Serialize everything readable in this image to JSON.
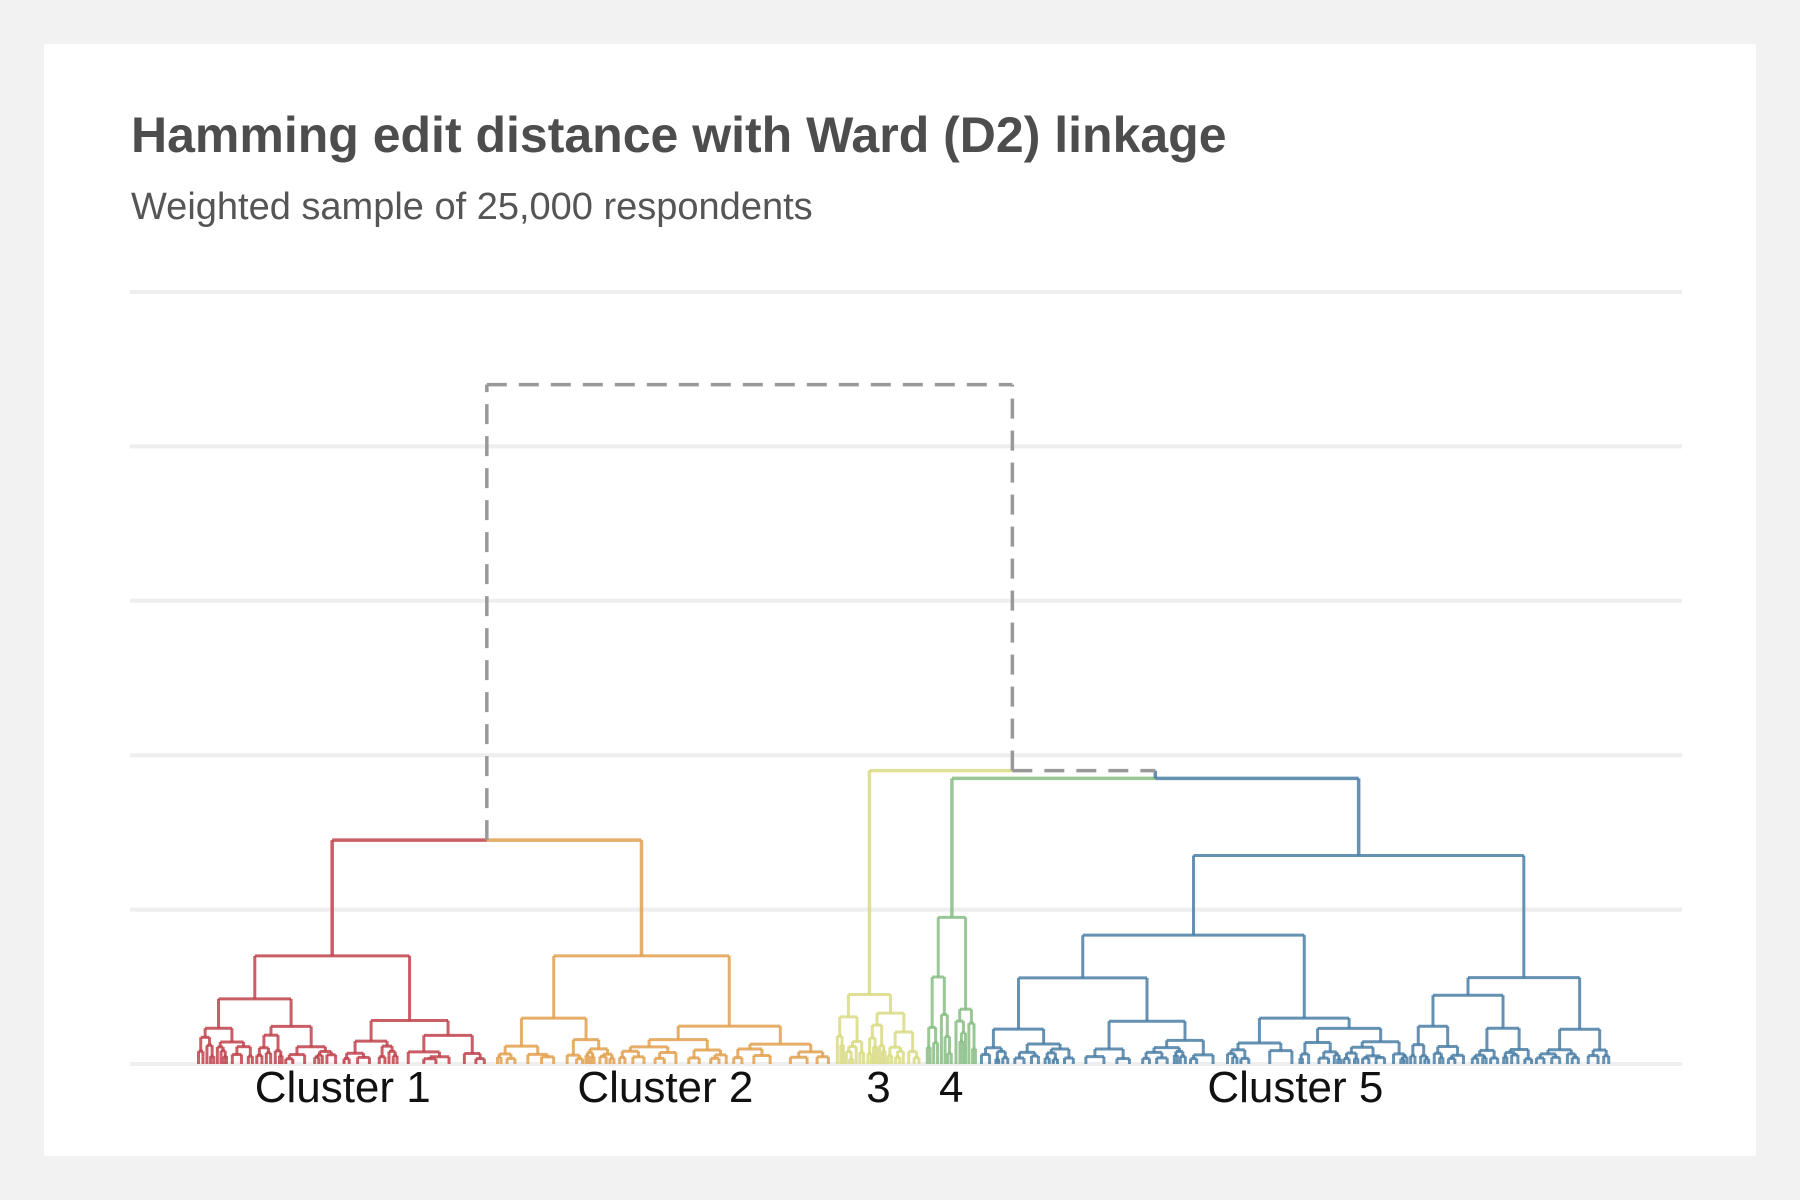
{
  "title": "Hamming edit distance with Ward (D2) linkage",
  "subtitle": "Weighted sample of 25,000 respondents",
  "chart_data": {
    "type": "dendrogram",
    "grid": true,
    "linkage": "Ward (D2)",
    "distance": "Hamming edit distance",
    "top_merge_style": "dashed",
    "top_merge_color": "#999999",
    "clusters": [
      {
        "label": "Cluster 1",
        "color": "#c0424b",
        "relative_size": 0.19
      },
      {
        "label": "Cluster 2",
        "color": "#e2a04e",
        "relative_size": 0.22
      },
      {
        "label": "3",
        "color": "#d8db84",
        "relative_size": 0.056
      },
      {
        "label": "4",
        "color": "#88bd84",
        "relative_size": 0.033
      },
      {
        "label": "Cluster 5",
        "color": "#4a7ea6",
        "relative_size": 0.41
      }
    ],
    "merges": [
      {
        "joins": [
          "Cluster 1",
          "Cluster 2"
        ],
        "relative_height": 0.29
      },
      {
        "joins": [
          "4",
          "Cluster 5"
        ],
        "relative_height": 0.37
      },
      {
        "joins": [
          "3",
          "4+Cluster 5"
        ],
        "relative_height": 0.38
      },
      {
        "joins": [
          "Cluster 1+2",
          "3+4+5"
        ],
        "relative_height": 0.88
      }
    ]
  }
}
